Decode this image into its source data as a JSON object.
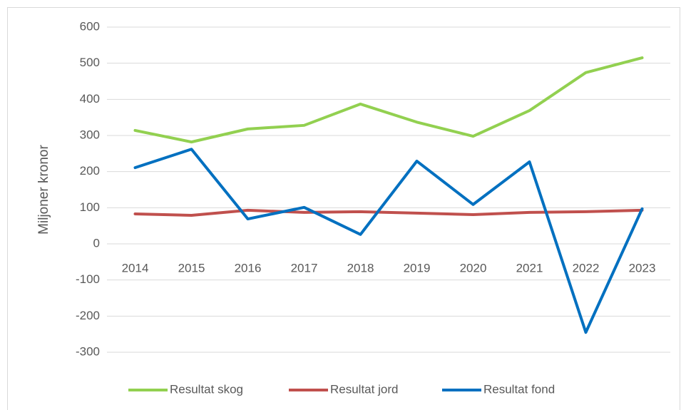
{
  "chart_data": {
    "type": "line",
    "y_label": "Miljoner kronor",
    "categories": [
      "2014",
      "2015",
      "2016",
      "2017",
      "2018",
      "2019",
      "2020",
      "2021",
      "2022",
      "2023"
    ],
    "series": [
      {
        "name": "Resultat skog",
        "color": "#92d050",
        "values": [
          314,
          282,
          318,
          328,
          387,
          337,
          298,
          369,
          474,
          515
        ]
      },
      {
        "name": "Resultat jord",
        "color": "#c0504d",
        "values": [
          83,
          79,
          93,
          87,
          89,
          85,
          81,
          87,
          89,
          93
        ]
      },
      {
        "name": "Resultat fond",
        "color": "#0070c0",
        "values": [
          211,
          262,
          69,
          101,
          26,
          229,
          109,
          227,
          -245,
          97
        ]
      }
    ],
    "ylim": [
      -300,
      600
    ],
    "yticks": [
      -300,
      -200,
      -100,
      0,
      100,
      200,
      300,
      400,
      500,
      600
    ],
    "grid": true,
    "legend": "bottom"
  }
}
